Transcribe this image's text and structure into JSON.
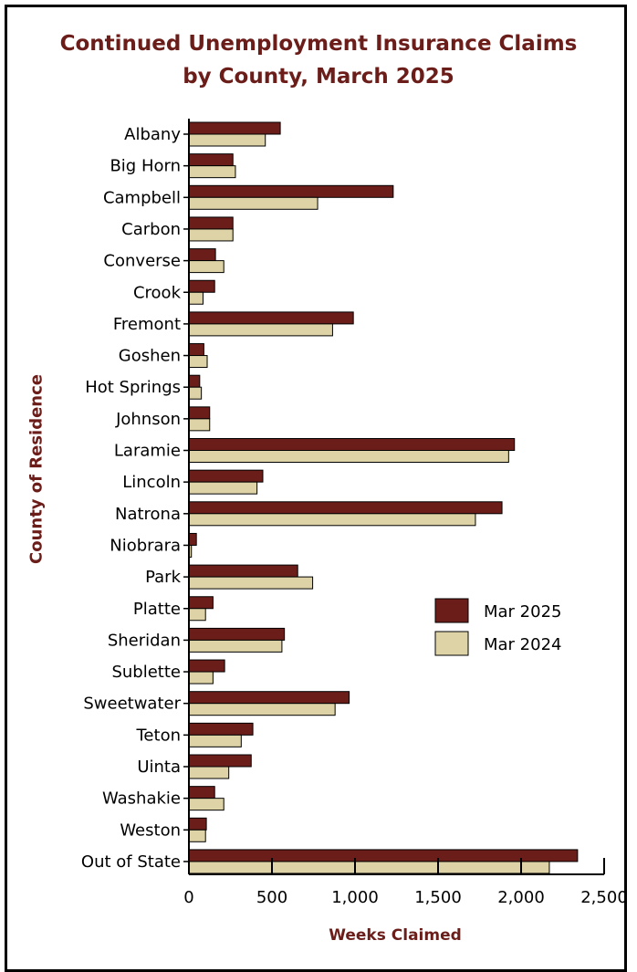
{
  "chart_data": {
    "type": "bar",
    "orientation": "horizontal",
    "title_line1": "Continued Unemployment Insurance Claims",
    "title_line2": "by County, March 2025",
    "xlabel": "Weeks Claimed",
    "ylabel": "County of Residence",
    "xlim": [
      0,
      2500
    ],
    "xticks": [
      0,
      500,
      1000,
      1500,
      2000,
      2500
    ],
    "xtick_labels": [
      "0",
      "500",
      "1,000",
      "1,500",
      "2,000",
      "2,500"
    ],
    "grid": false,
    "legend_position": "right",
    "categories": [
      "Albany",
      "Big Horn",
      "Campbell",
      "Carbon",
      "Converse",
      "Crook",
      "Fremont",
      "Goshen",
      "Hot Springs",
      "Johnson",
      "Laramie",
      "Lincoln",
      "Natrona",
      "Niobrara",
      "Park",
      "Platte",
      "Sheridan",
      "Sublette",
      "Sweetwater",
      "Teton",
      "Uinta",
      "Washakie",
      "Weston",
      "Out of State"
    ],
    "series": [
      {
        "name": "Mar 2025",
        "color": "#6b1d1a",
        "values": [
          550,
          265,
          1230,
          265,
          160,
          155,
          990,
          90,
          65,
          125,
          1960,
          445,
          1885,
          45,
          655,
          145,
          575,
          215,
          965,
          385,
          375,
          155,
          105,
          2340
        ]
      },
      {
        "name": "Mar 2024",
        "color": "#ddd3a6",
        "values": [
          460,
          280,
          775,
          265,
          210,
          85,
          865,
          110,
          75,
          125,
          1925,
          410,
          1725,
          15,
          745,
          100,
          560,
          145,
          880,
          315,
          240,
          210,
          100,
          2170
        ]
      }
    ]
  }
}
